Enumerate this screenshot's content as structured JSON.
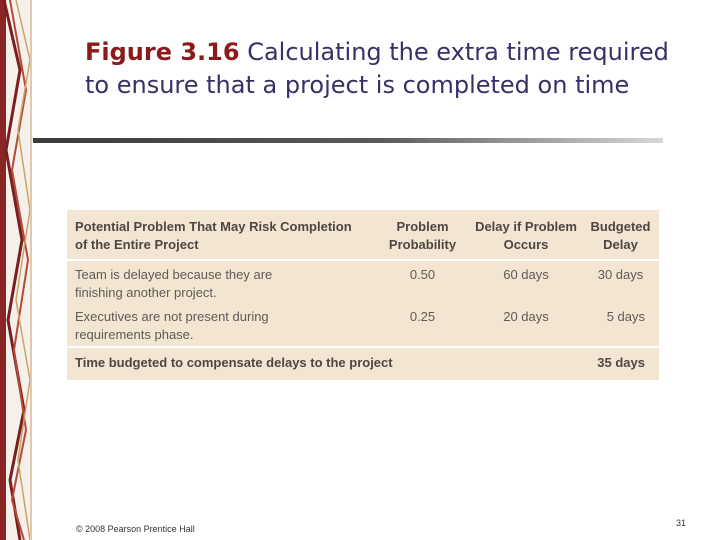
{
  "slide": {
    "title_fig": "Figure 3.16",
    "title_rest": " Calculating the extra time required to ensure that a project is completed on time"
  },
  "table": {
    "headers": [
      "Potential Problem That May Risk Completion of the Entire Project",
      "Problem Probability",
      "Delay if Problem Occurs",
      "Budgeted Delay"
    ],
    "rows": [
      {
        "problem": "Team is delayed because they are finishing another project.",
        "probability": "0.50",
        "delay": "60 days",
        "budgeted": "30 days"
      },
      {
        "problem": "Executives are not present during requirements phase.",
        "probability": "0.25",
        "delay": "20 days",
        "budgeted": "5 days"
      }
    ],
    "total": {
      "label": "Time budgeted to compensate delays to the project",
      "value": "35 days"
    }
  },
  "footer": {
    "copyright": "© 2008 Pearson Prentice Hall",
    "page_number": "31"
  }
}
